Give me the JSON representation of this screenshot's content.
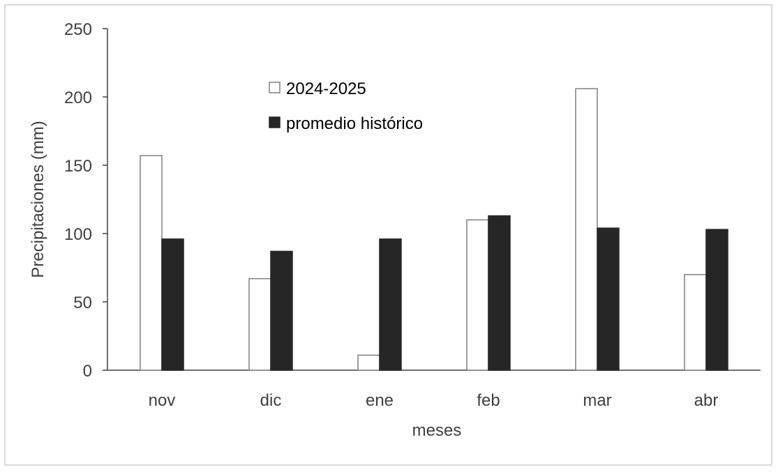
{
  "chart_data": {
    "type": "bar",
    "title": "",
    "xlabel": "meses",
    "ylabel": "Precipitaciones (mm)",
    "ylim": [
      0,
      250
    ],
    "yticks": [
      0,
      50,
      100,
      150,
      200,
      250
    ],
    "grid": false,
    "legend_position": "top-center",
    "categories": [
      "nov",
      "dic",
      "ene",
      "feb",
      "mar",
      "abr"
    ],
    "series": [
      {
        "name": "2024-2025",
        "values": [
          157,
          67,
          11,
          110,
          206,
          70
        ],
        "fill": "#ffffff",
        "stroke": "#7f7f7f"
      },
      {
        "name": "promedio histórico",
        "values": [
          96,
          87,
          96,
          113,
          104,
          103
        ],
        "fill": "#262626",
        "stroke": "#262626"
      }
    ]
  }
}
